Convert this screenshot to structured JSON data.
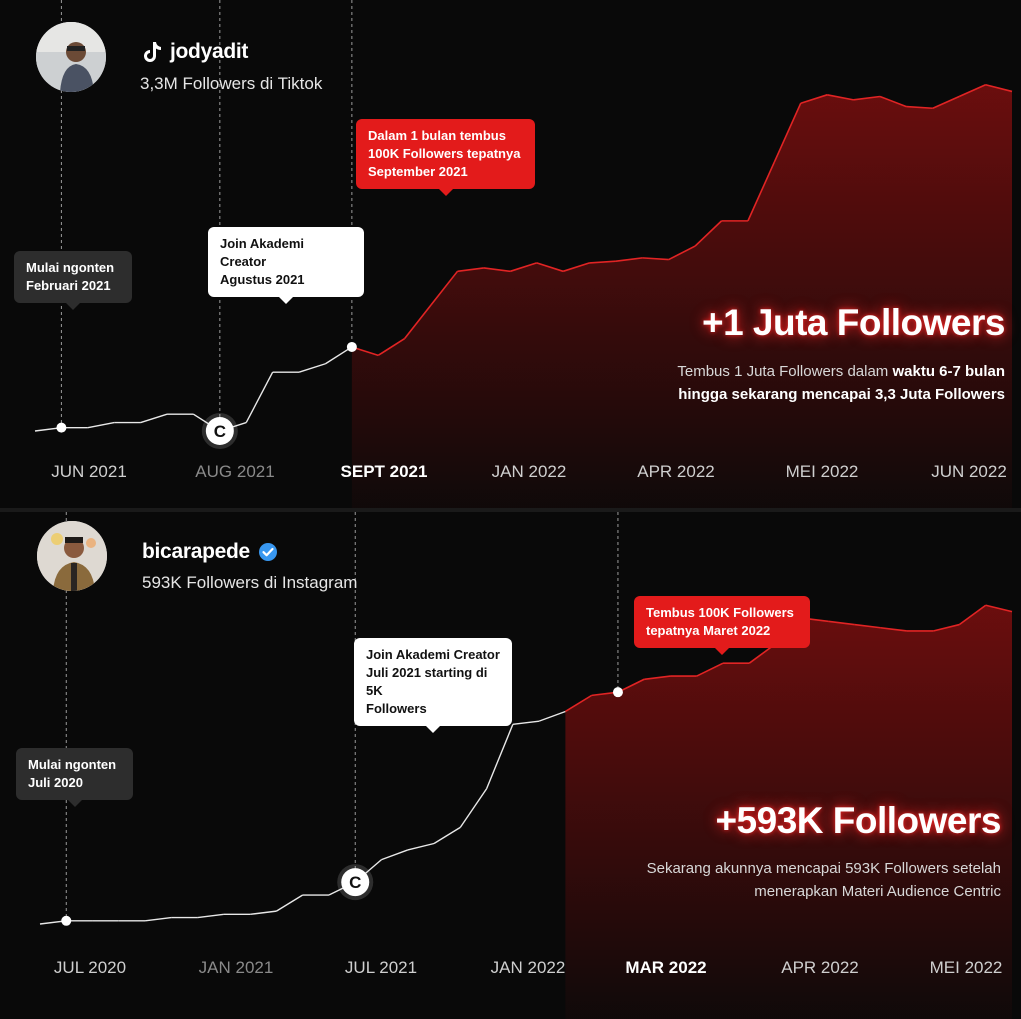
{
  "chart_data": [
    {
      "type": "area",
      "platform": "Tiktok",
      "handle": "jodyadit",
      "subtitle": "3,3M Followers di Tiktok",
      "headline": "+1 Juta Followers",
      "description": {
        "line1_normal": "Tembus 1 Juta Followers dalam ",
        "line1_bold": "waktu 6-7 bulan",
        "line2_bold": "hingga sekarang mencapai 3,3 Juta Followers"
      },
      "x_ticks": [
        "JUN 2021",
        "AUG 2021",
        "SEPT 2021",
        "JAN 2022",
        "APR 2022",
        "MEI 2022",
        "JUN 2022"
      ],
      "highlighted_tick": "SEPT 2021",
      "muted_tick": "AUG 2021",
      "series": [
        {
          "values": [
            0.0,
            0.02,
            0.02,
            0.05,
            0.05,
            0.1,
            0.1,
            0.0,
            0.05,
            0.35,
            0.35,
            0.4,
            0.5,
            0.45,
            0.55,
            0.75,
            0.95,
            0.97,
            0.95,
            1.0,
            0.95,
            1.0,
            1.01,
            1.03,
            1.02,
            1.1,
            1.25,
            1.25,
            1.6,
            1.95,
            2.0,
            1.97,
            1.99,
            1.93,
            1.92,
            1.99,
            2.06,
            2.02
          ]
        }
      ],
      "annotations": [
        {
          "label": "Mulai ngonten\nFebruari 2021",
          "style": "dark"
        },
        {
          "label": "Join Akademi Creator\nAgustus 2021",
          "style": "white"
        },
        {
          "label": "Dalam 1 bulan tembus\n100K Followers tepatnya\nSeptember 2021",
          "style": "red"
        }
      ],
      "colors": {
        "line_early": "#e8e8e8",
        "line_late": "#e12424",
        "area": "#8b0f0f"
      }
    },
    {
      "type": "area",
      "platform": "Instagram",
      "handle": "bicarapede",
      "verified": true,
      "subtitle": "593K Followers di Instagram",
      "headline": "+593K Followers",
      "description": {
        "line1": "Sekarang akunnya mencapai 593K Followers setelah",
        "line2": "menerapkan Materi Audience Centric"
      },
      "x_ticks": [
        "JUL 2020",
        "JAN 2021",
        "JUL 2021",
        "JAN 2022",
        "MAR 2022",
        "APR 2022",
        "MEI 2022"
      ],
      "highlighted_tick": "MAR 2022",
      "muted_tick": "JAN 2021",
      "series": [
        {
          "values": [
            0.0,
            0.01,
            0.01,
            0.01,
            0.01,
            0.02,
            0.02,
            0.03,
            0.03,
            0.04,
            0.09,
            0.09,
            0.13,
            0.2,
            0.23,
            0.25,
            0.3,
            0.42,
            0.62,
            0.63,
            0.66,
            0.71,
            0.72,
            0.76,
            0.77,
            0.77,
            0.81,
            0.81,
            0.87,
            0.95,
            0.94,
            0.93,
            0.92,
            0.91,
            0.91,
            0.93,
            0.99,
            0.97
          ]
        }
      ],
      "annotations": [
        {
          "label": "Mulai ngonten\nJuli 2020",
          "style": "dark"
        },
        {
          "label": "Join Akademi Creator\nJuli 2021 starting di 5K\nFollowers",
          "style": "white"
        },
        {
          "label": "Tembus 100K Followers\ntepatnya Maret 2022",
          "style": "red"
        }
      ],
      "colors": {
        "line_early": "#e8e8e8",
        "line_late": "#e12424",
        "area": "#8b0f0f"
      }
    }
  ],
  "logo_mark": "C",
  "icons": {
    "tiktok": "tiktok-icon",
    "verified": "verified-badge-icon"
  }
}
